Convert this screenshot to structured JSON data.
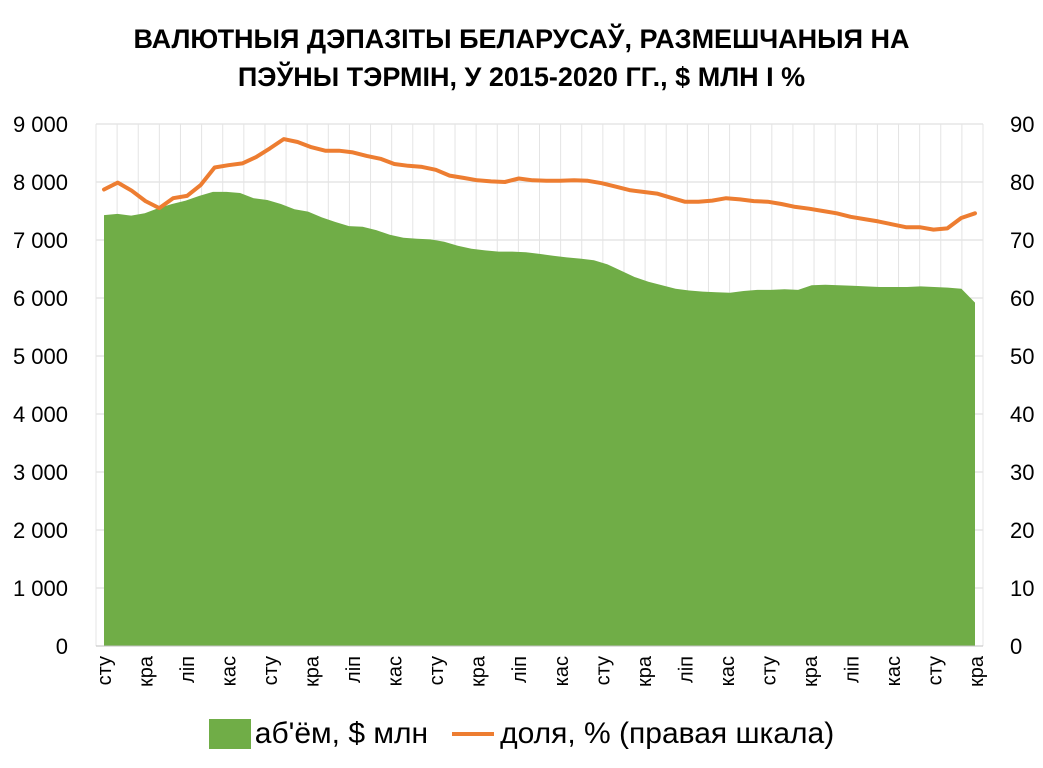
{
  "chart_data": {
    "type": "area",
    "title_lines": [
      "ВАЛЮТНЫЯ ДЭПАЗІТЫ БЕЛАРУСАЎ, РАЗМЕШЧАНЫЯ НА",
      "ПЭЎНЫ ТЭРМІН, У 2015-2020 ГГ., $ МЛН І %"
    ],
    "xlabel": "",
    "ylabel": "",
    "y_left": {
      "ticks": [
        "0",
        "1 000",
        "2 000",
        "3 000",
        "4 000",
        "5 000",
        "6 000",
        "7 000",
        "8 000",
        "9 000"
      ],
      "ylim": [
        0,
        9000
      ]
    },
    "y_right": {
      "ticks": [
        "0",
        "10",
        "20",
        "30",
        "40",
        "50",
        "60",
        "70",
        "80",
        "90"
      ],
      "ylim": [
        0,
        90
      ]
    },
    "grid": true,
    "legend_position": "bottom",
    "category_labels": [
      "сту",
      "кра",
      "ліп",
      "кас",
      "сту",
      "кра",
      "ліп",
      "кас",
      "сту",
      "кра",
      "ліп",
      "кас",
      "сту",
      "кра",
      "ліп",
      "кас",
      "сту",
      "кра",
      "ліп",
      "кас",
      "сту",
      "кра"
    ],
    "series": [
      {
        "name": "аб'ём, $ млн",
        "kind": "area",
        "axis": "left",
        "color": "#70ad47",
        "values": [
          7430,
          7450,
          7420,
          7460,
          7550,
          7620,
          7680,
          7760,
          7830,
          7830,
          7810,
          7720,
          7690,
          7620,
          7530,
          7490,
          7390,
          7310,
          7240,
          7230,
          7170,
          7090,
          7040,
          7020,
          7010,
          6970,
          6900,
          6850,
          6820,
          6800,
          6800,
          6790,
          6760,
          6730,
          6700,
          6680,
          6650,
          6580,
          6470,
          6360,
          6280,
          6220,
          6160,
          6130,
          6110,
          6100,
          6090,
          6120,
          6140,
          6140,
          6150,
          6140,
          6220,
          6230,
          6220,
          6210,
          6200,
          6190,
          6190,
          6190,
          6200,
          6190,
          6180,
          6160,
          5920
        ]
      },
      {
        "name": "доля, % (правая шкала)",
        "kind": "line",
        "axis": "right",
        "color": "#ed7d31",
        "values": [
          78.7,
          79.9,
          78.5,
          76.7,
          75.5,
          77.2,
          77.6,
          79.5,
          82.5,
          82.9,
          83.2,
          84.3,
          85.8,
          87.4,
          86.9,
          86.0,
          85.4,
          85.4,
          85.1,
          84.5,
          84.0,
          83.1,
          82.8,
          82.6,
          82.1,
          81.1,
          80.7,
          80.3,
          80.1,
          80.0,
          80.6,
          80.3,
          80.2,
          80.2,
          80.3,
          80.2,
          79.8,
          79.2,
          78.6,
          78.3,
          78.0,
          77.3,
          76.6,
          76.6,
          76.8,
          77.2,
          77.0,
          76.7,
          76.6,
          76.2,
          75.7,
          75.4,
          75.0,
          74.6,
          74.0,
          73.6,
          73.2,
          72.7,
          72.2,
          72.2,
          71.8,
          72.0,
          73.8,
          74.6
        ]
      }
    ]
  }
}
